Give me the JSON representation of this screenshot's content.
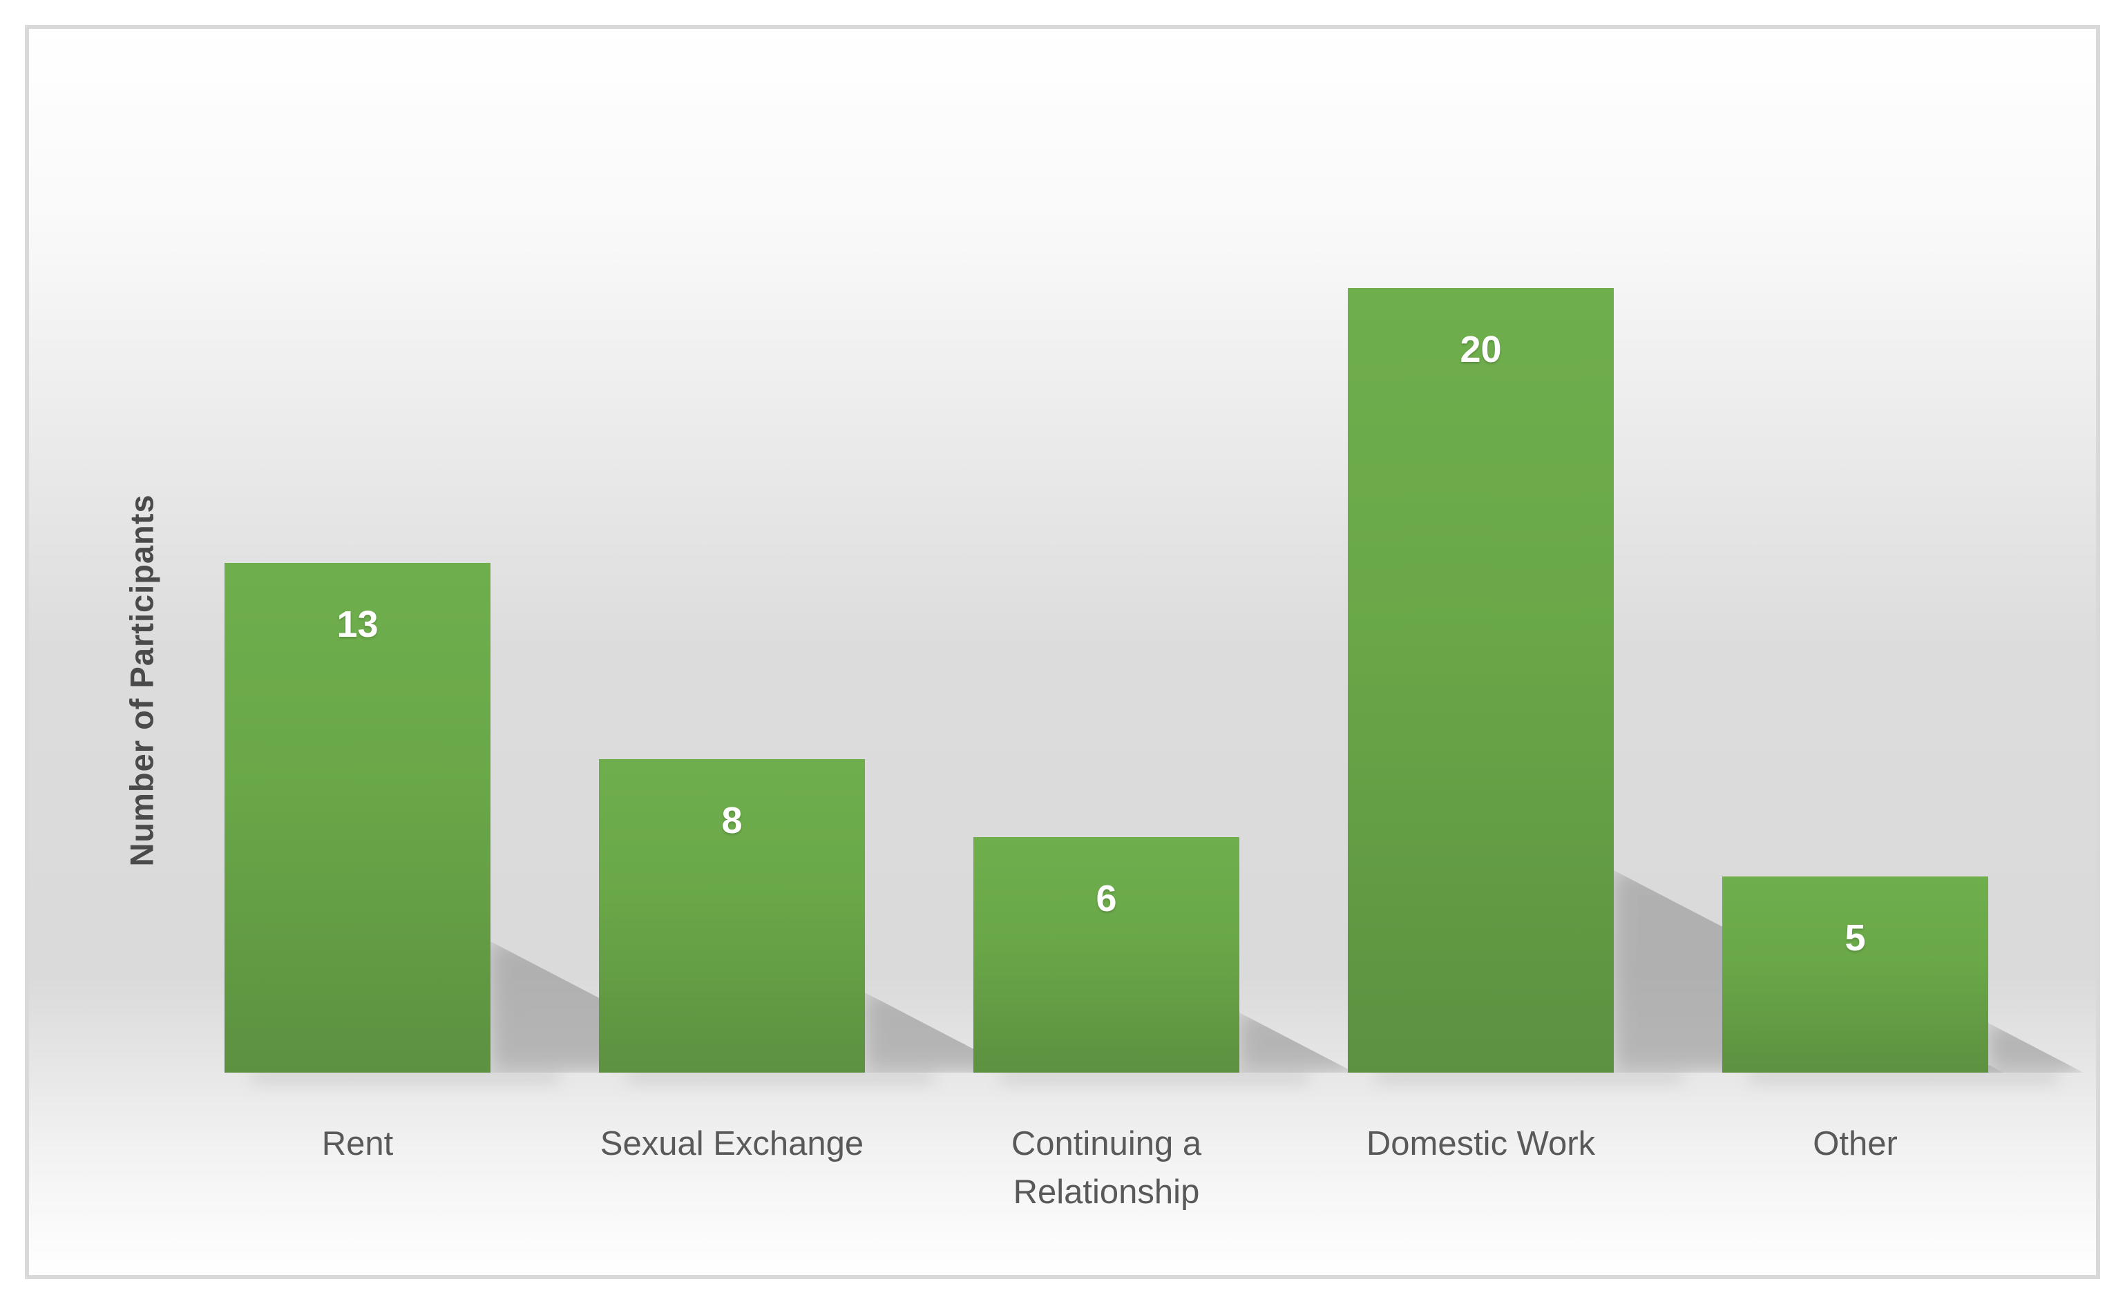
{
  "chart_data": {
    "type": "bar",
    "categories": [
      "Rent",
      "Sexual Exchange",
      "Continuing a Relationship",
      "Domestic Work",
      "Other"
    ],
    "values": [
      13,
      8,
      6,
      20,
      5
    ],
    "title": "",
    "xlabel": "",
    "ylabel": "Number of Participants",
    "ylim": [
      0,
      20
    ],
    "grid": false,
    "legend": false,
    "value_labels_position": "inside-end",
    "colors": {
      "bar_top": "#6fae4d",
      "bar_bottom": "#5c9140",
      "value_label": "#ffffff",
      "category_label": "#595959",
      "axis_title": "#4a4a4a",
      "frame_border": "#d9d9d9",
      "background_mid": "#dcdcdc",
      "shadow": "#8f8f8f"
    }
  }
}
